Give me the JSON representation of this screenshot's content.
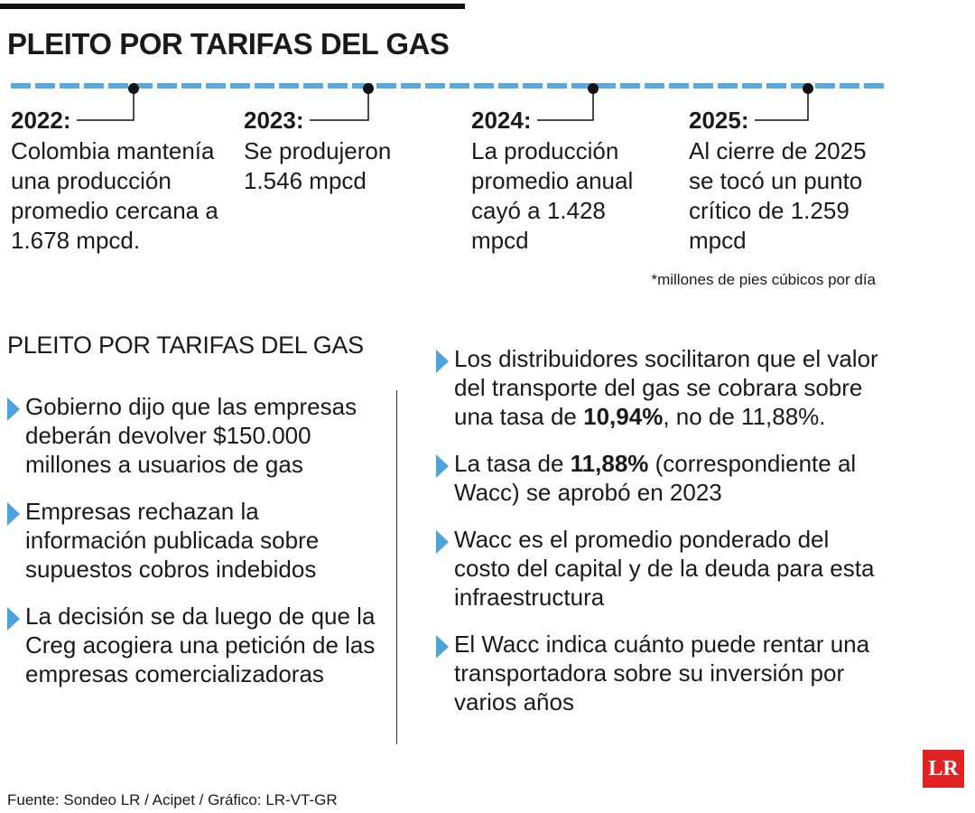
{
  "header": {
    "title": "PLEITO POR TARIFAS DEL GAS"
  },
  "timeline": [
    {
      "year": "2022:",
      "text": "Colombia mantenía una producción promedio cercana a 1.678 mpcd."
    },
    {
      "year": "2023:",
      "text": "Se produjeron 1.546 mpcd"
    },
    {
      "year": "2024:",
      "text": "La producción promedio anual cayó a 1.428 mpcd"
    },
    {
      "year": "2025:",
      "text": "Al cierre de 2025 se tocó un punto crítico de 1.259 mpcd"
    }
  ],
  "footnote": "*millones de pies cúbicos por día",
  "section": {
    "title": "PLEITO POR TARIFAS DEL GAS",
    "left": [
      {
        "parts": [
          {
            "text": "Gobierno dijo que las empresas deberán devolver $150.000 millones a usuarios de gas",
            "bold": false
          }
        ]
      },
      {
        "parts": [
          {
            "text": "Empresas rechazan la información publicada sobre supuestos cobros indebidos",
            "bold": false
          }
        ]
      },
      {
        "parts": [
          {
            "text": "La decisión se da luego de que la Creg acogiera una petición de las empresas comercializadoras",
            "bold": false
          }
        ]
      }
    ],
    "right": [
      {
        "parts": [
          {
            "text": "Los distribuidores socilitaron que el valor del transporte del gas se cobrara sobre una tasa de ",
            "bold": false
          },
          {
            "text": "10,94%",
            "bold": true
          },
          {
            "text": ", no de 11,88%.",
            "bold": false
          }
        ]
      },
      {
        "parts": [
          {
            "text": "La tasa de ",
            "bold": false
          },
          {
            "text": "11,88%",
            "bold": true
          },
          {
            "text": " (correspondiente al Wacc) se aprobó en 2023",
            "bold": false
          }
        ]
      },
      {
        "parts": [
          {
            "text": "Wacc es el promedio ponderado del costo del capital y de la deuda para esta infraestructura",
            "bold": false
          }
        ]
      },
      {
        "parts": [
          {
            "text": "El Wacc indica cuánto puede rentar una transportadora sobre su inversión por varios años",
            "bold": false
          }
        ]
      }
    ]
  },
  "source": "Fuente: Sondeo LR / Acipet / Gráfico: LR-VT-GR",
  "logo": "LR"
}
